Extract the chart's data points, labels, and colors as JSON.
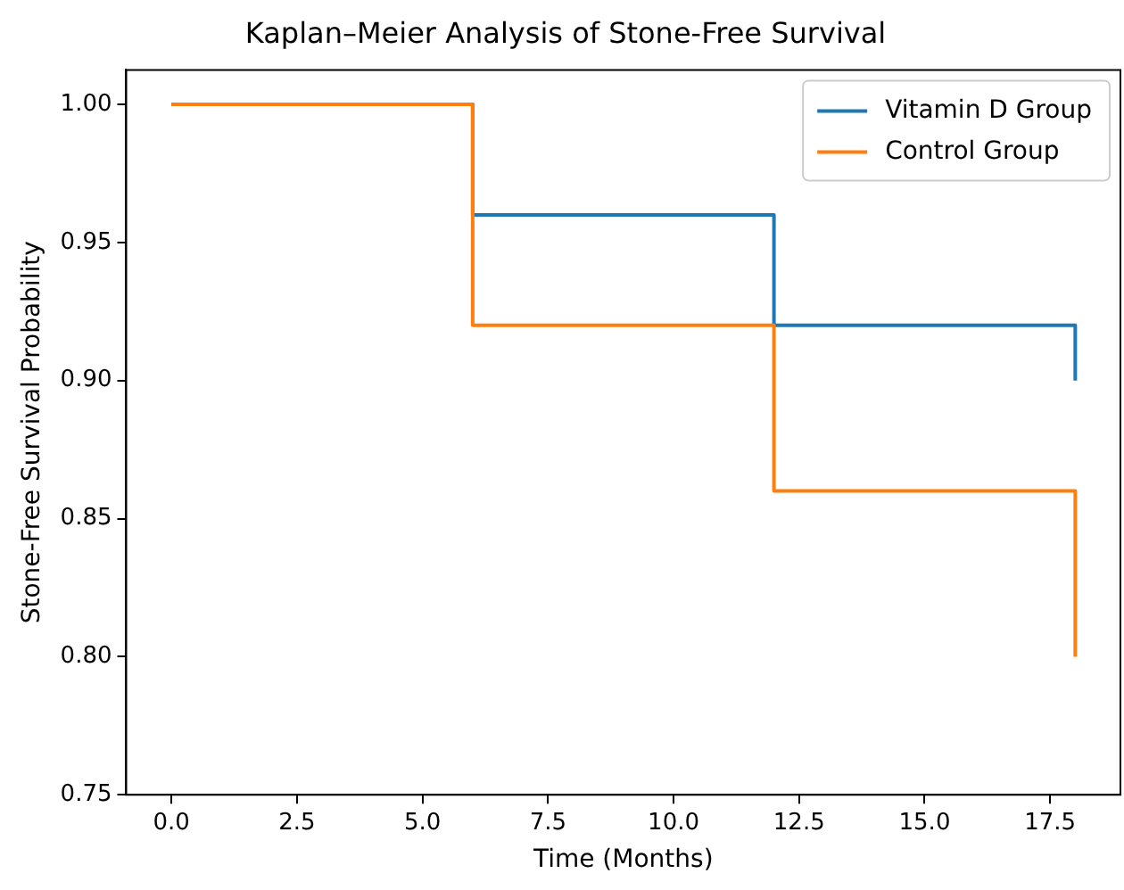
{
  "chart_data": {
    "type": "step",
    "title": "Kaplan–Meier Analysis of Stone-Free Survival",
    "xlabel": "Time (Months)",
    "ylabel": "Stone-Free Survival Probability",
    "x": [
      0,
      6,
      12,
      18
    ],
    "series": [
      {
        "name": "Vitamin D Group",
        "color": "#1f77b4",
        "values": [
          1.0,
          0.96,
          0.92,
          0.9
        ]
      },
      {
        "name": "Control Group",
        "color": "#ff7f0e",
        "values": [
          1.0,
          0.92,
          0.86,
          0.8
        ]
      }
    ],
    "xlim": [
      -0.9,
      18.9
    ],
    "xticks": [
      {
        "value": 0,
        "label": "0.0"
      },
      {
        "value": 2.5,
        "label": "2.5"
      },
      {
        "value": 5,
        "label": "5.0"
      },
      {
        "value": 7.5,
        "label": "7.5"
      },
      {
        "value": 10,
        "label": "10.0"
      },
      {
        "value": 12.5,
        "label": "12.5"
      },
      {
        "value": 15,
        "label": "15.0"
      },
      {
        "value": 17.5,
        "label": "17.5"
      }
    ],
    "ylim": [
      0.75,
      1.0125
    ],
    "yticks": [
      {
        "value": 0.75,
        "label": "0.75"
      },
      {
        "value": 0.8,
        "label": "0.80"
      },
      {
        "value": 0.85,
        "label": "0.85"
      },
      {
        "value": 0.9,
        "label": "0.90"
      },
      {
        "value": 0.95,
        "label": "0.95"
      },
      {
        "value": 1.0,
        "label": "1.00"
      }
    ],
    "grid": false,
    "legend": "top right",
    "line_style": "solid",
    "marker": "none"
  }
}
